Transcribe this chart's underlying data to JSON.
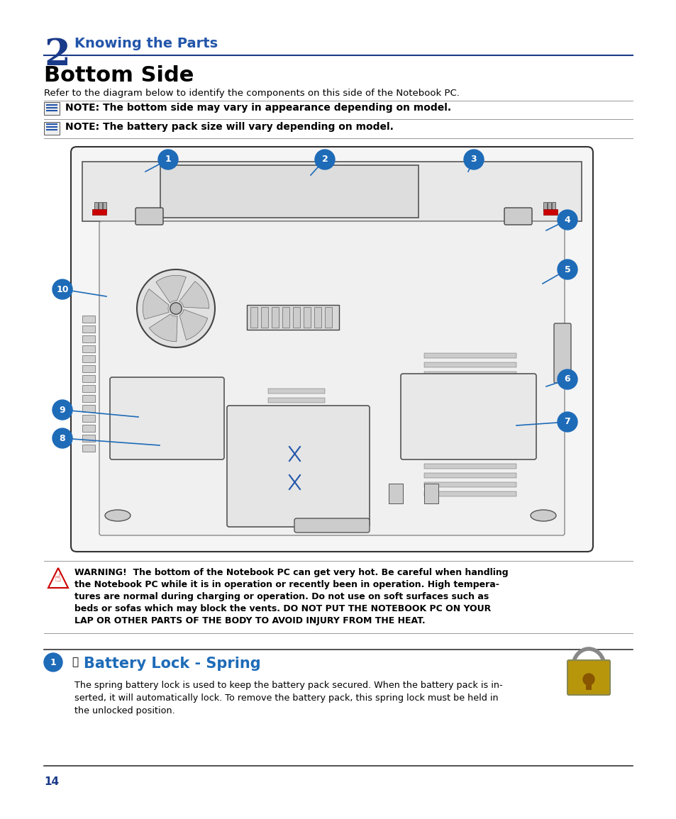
{
  "bg_color": "#ffffff",
  "page_width": 9.54,
  "page_height": 11.55,
  "chapter_num": "2",
  "chapter_title": "Knowing the Parts",
  "section_title": "Bottom Side",
  "intro_text": "Refer to the diagram below to identify the components on this side of the Notebook PC.",
  "note1": "NOTE: The bottom side may vary in appearance depending on model.",
  "note2": "NOTE: The battery pack size will vary depending on model.",
  "warning_text": "WARNING!  The bottom of the Notebook PC can get very hot. Be careful when handling\nthe Notebook PC while it is in operation or recently been in operation. High tempera-\ntures are normal during charging or operation. Do not use on soft surfaces such as\nbeds or sofas which may block the vents. DO NOT PUT THE NOTEBOOK PC ON YOUR\nLAP OR OTHER PARTS OF THE BODY TO AVOID INJURY FROM THE HEAT.",
  "battery_lock_title": "Battery Lock - Spring",
  "battery_lock_text": "The spring battery lock is used to keep the battery pack secured. When the battery pack is in-\nserted, it will automatically lock. To remove the battery pack, this spring lock must be held in\nthe unlocked position.",
  "page_number": "14",
  "blue_color": "#1a3a8a",
  "dark_blue": "#1a3a8a",
  "label_blue": "#1e6bb8",
  "header_blue": "#2255aa",
  "line_color": "#1a3a8a",
  "text_color": "#000000",
  "red_color": "#cc0000"
}
